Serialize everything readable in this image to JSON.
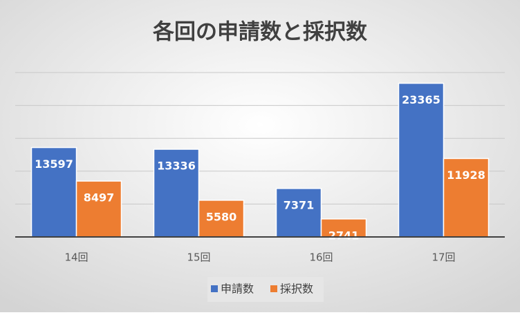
{
  "chart_data": {
    "type": "bar",
    "title": "各回の申請数と採択数",
    "categories": [
      "14回",
      "15回",
      "16回",
      "17回"
    ],
    "series": [
      {
        "name": "申請数",
        "color": "#4472c4",
        "values": [
          13597,
          13336,
          7371,
          23365
        ]
      },
      {
        "name": "採択数",
        "color": "#ed7d31",
        "values": [
          8497,
          5580,
          2741,
          11928
        ]
      }
    ],
    "ylim": [
      0,
      25000
    ],
    "yticks": [
      0,
      5000,
      10000,
      15000,
      20000,
      25000
    ],
    "grid": true
  }
}
